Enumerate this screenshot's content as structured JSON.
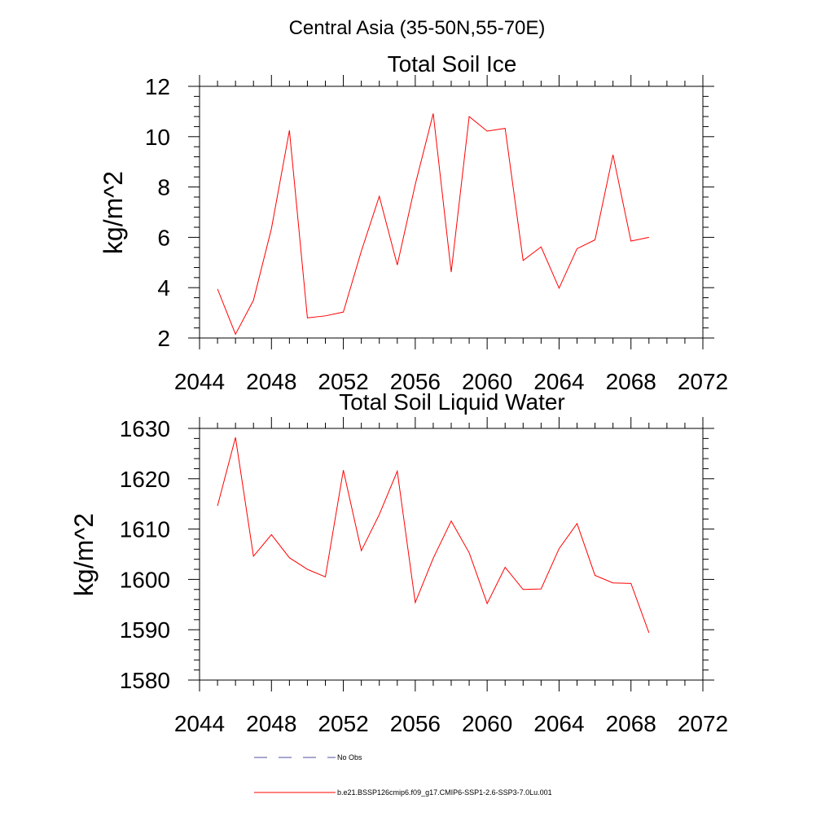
{
  "figure": {
    "main_title": "Central Asia (35-50N,55-70E)"
  },
  "colors": {
    "series": "#ff0000",
    "no_obs": "#4f4fa0",
    "axis": "#000000"
  },
  "legend": {
    "placement": "bottom",
    "entries": [
      {
        "label": "No Obs",
        "style": "dashed",
        "color": "#4f4fa0"
      },
      {
        "label": "b.e21.BSSP126cmip6.f09_g17.CMIP6-SSP1-2.6-SSP3-7.0Lu.001",
        "style": "solid",
        "color": "#ff0000"
      }
    ]
  },
  "chart_data": [
    {
      "type": "line",
      "title": "Total Soil Ice",
      "xlabel": "",
      "ylabel": "kg/m^2",
      "xlim": [
        2044,
        2072
      ],
      "ylim": [
        2,
        12
      ],
      "xticks": [
        2044,
        2048,
        2052,
        2056,
        2060,
        2064,
        2068,
        2072
      ],
      "yticks": [
        2,
        4,
        6,
        8,
        10,
        12
      ],
      "grid": false,
      "series": [
        {
          "name": "b.e21.BSSP126cmip6.f09_g17.CMIP6-SSP1-2.6-SSP3-7.0Lu.001",
          "x": [
            2045,
            2046,
            2047,
            2048,
            2049,
            2050,
            2051,
            2052,
            2053,
            2054,
            2055,
            2056,
            2057,
            2058,
            2059,
            2060,
            2061,
            2062,
            2063,
            2064,
            2065,
            2066,
            2067,
            2068,
            2069
          ],
          "y": [
            3.95,
            2.15,
            3.5,
            6.35,
            10.25,
            2.8,
            2.88,
            3.03,
            5.45,
            7.63,
            4.9,
            8.1,
            10.92,
            4.62,
            10.8,
            10.22,
            10.33,
            5.08,
            5.62,
            3.98,
            5.55,
            5.9,
            9.28,
            5.85,
            6.0
          ]
        }
      ]
    },
    {
      "type": "line",
      "title": "Total Soil Liquid Water",
      "xlabel": "",
      "ylabel": "kg/m^2",
      "xlim": [
        2044,
        2072
      ],
      "ylim": [
        1580,
        1630
      ],
      "xticks": [
        2044,
        2048,
        2052,
        2056,
        2060,
        2064,
        2068,
        2072
      ],
      "yticks": [
        1580,
        1590,
        1600,
        1610,
        1620,
        1630
      ],
      "grid": false,
      "series": [
        {
          "name": "b.e21.BSSP126cmip6.f09_g17.CMIP6-SSP1-2.6-SSP3-7.0Lu.001",
          "x": [
            2045,
            2046,
            2047,
            2048,
            2049,
            2050,
            2051,
            2052,
            2053,
            2054,
            2055,
            2056,
            2057,
            2058,
            2059,
            2060,
            2061,
            2062,
            2063,
            2064,
            2065,
            2066,
            2067,
            2068,
            2069
          ],
          "y": [
            1614.6,
            1628.2,
            1604.6,
            1608.9,
            1604.3,
            1602.0,
            1600.5,
            1621.7,
            1605.7,
            1612.9,
            1621.5,
            1595.4,
            1604.2,
            1611.6,
            1605.3,
            1595.2,
            1602.4,
            1598.0,
            1598.1,
            1606.1,
            1611.1,
            1600.8,
            1599.3,
            1599.2,
            1589.4
          ]
        }
      ]
    }
  ]
}
